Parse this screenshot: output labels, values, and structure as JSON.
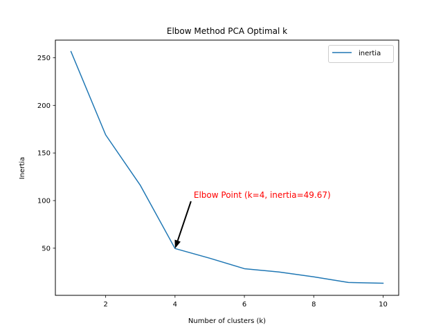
{
  "chart_data": {
    "type": "line",
    "title": "Elbow Method PCA Optimal k",
    "xlabel": "Number of clusters (k)",
    "ylabel": "Inertia",
    "x": [
      1,
      2,
      3,
      4,
      5,
      6,
      7,
      8,
      9,
      10
    ],
    "series": [
      {
        "name": "inertia",
        "color": "#1f77b4",
        "values": [
          256.5,
          169.0,
          116.0,
          49.67,
          39.5,
          28.5,
          25.0,
          19.9,
          14.0,
          13.2
        ]
      }
    ],
    "xlim": [
      0.55,
      10.45
    ],
    "ylim": [
      0.5,
      268.5
    ],
    "xticks": [
      2,
      4,
      6,
      8,
      10
    ],
    "yticks": [
      50,
      100,
      150,
      200,
      250
    ],
    "grid": false,
    "legend_position": "top-right",
    "annotation": {
      "text": "Elbow Point (k=4, inertia=49.67)",
      "point": {
        "x": 4,
        "y": 49.67
      },
      "text_anchor": {
        "x": 4.5,
        "y": 100
      },
      "color": "#ff0000",
      "arrow_color": "#000000"
    }
  }
}
